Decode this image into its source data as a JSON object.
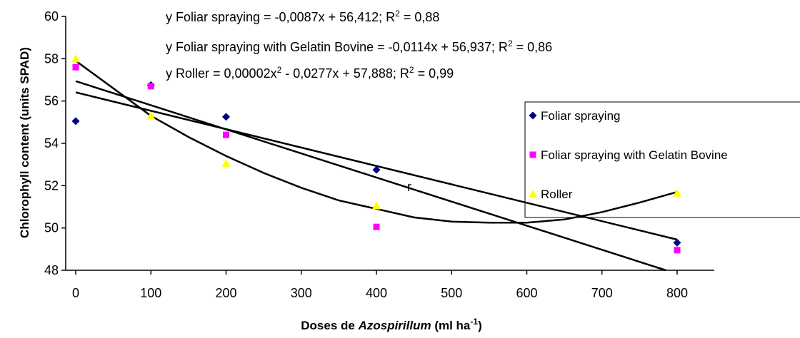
{
  "chart_data": {
    "type": "scatter",
    "ylabel": "Chlorophyll content (units SPAD)",
    "xlabel": [
      "Doses de ",
      "Azospirillum",
      " (ml ha",
      "-1",
      ")"
    ],
    "xlim": [
      0,
      850
    ],
    "ylim": [
      48,
      60
    ],
    "xticks": [
      0,
      100,
      200,
      300,
      400,
      500,
      600,
      700,
      800
    ],
    "yticks": [
      48,
      50,
      52,
      54,
      56,
      58,
      60
    ],
    "series": [
      {
        "name": "Foliar spraying",
        "color": "#000080",
        "marker": "diamond",
        "x": [
          0,
          100,
          200,
          400,
          800
        ],
        "values": [
          55.05,
          56.75,
          55.25,
          52.75,
          49.3
        ]
      },
      {
        "name": "Foliar spraying with Gelatin Bovine",
        "color": "#ff00ff",
        "marker": "square",
        "x": [
          0,
          100,
          200,
          400,
          800
        ],
        "values": [
          57.6,
          56.7,
          54.4,
          50.05,
          48.95
        ]
      },
      {
        "name": "Roller",
        "color": "#ffff00",
        "marker": "triangle",
        "x": [
          0,
          100,
          200,
          400,
          800
        ],
        "values": [
          58.0,
          55.3,
          53.05,
          51.05,
          51.65
        ]
      }
    ],
    "trendlines": [
      {
        "label": [
          "y Foliar spraying = -0,0087x + 56,412; R",
          "2",
          " = 0,88"
        ],
        "x": [
          0,
          800
        ],
        "values": [
          56.41,
          49.45
        ]
      },
      {
        "label": [
          "y Foliar spraying with Gelatin Bovine = -0,0114x + 56,937; R",
          "2",
          " = 0,86"
        ],
        "x": [
          0,
          785
        ],
        "values": [
          56.94,
          48.0
        ]
      },
      {
        "label": [
          "y Roller = 0,00002x",
          "2",
          " - 0,0277x + 57,888; R",
          "2",
          " = 0,99"
        ],
        "x": [
          0,
          50,
          100,
          150,
          200,
          250,
          300,
          350,
          400,
          450,
          500,
          550,
          600,
          650,
          700,
          750,
          800
        ],
        "values": [
          57.9,
          56.6,
          55.3,
          54.3,
          53.4,
          52.6,
          51.9,
          51.3,
          50.9,
          50.5,
          50.3,
          50.25,
          50.25,
          50.4,
          50.75,
          51.2,
          51.7
        ]
      }
    ],
    "annotation": "r"
  }
}
